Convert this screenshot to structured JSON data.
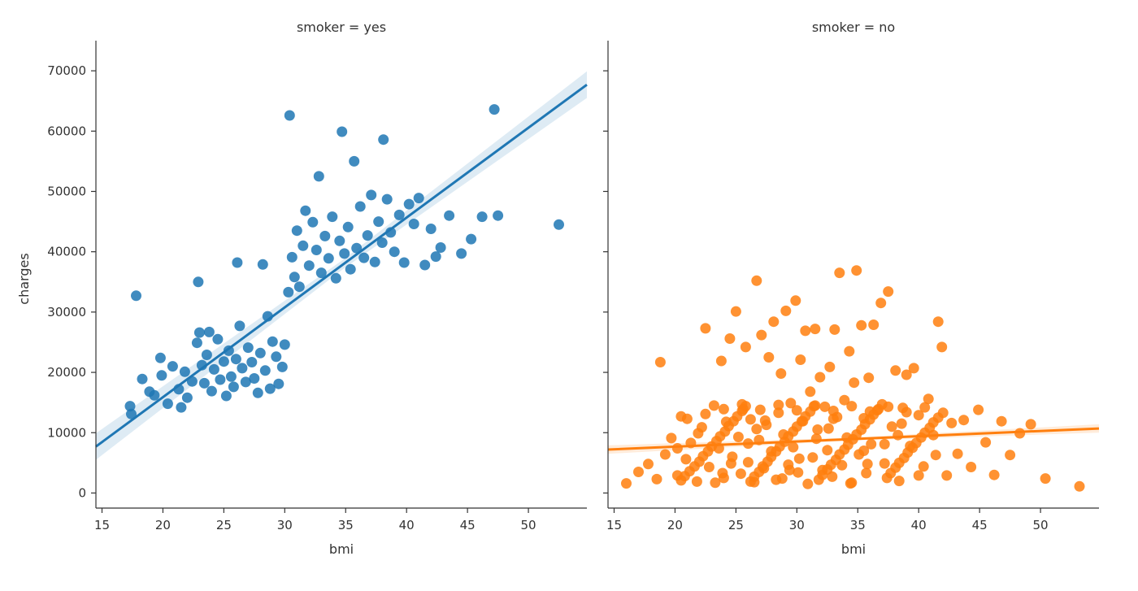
{
  "figure": {
    "ylabel": "charges",
    "yticks": [
      0,
      10000,
      20000,
      30000,
      40000,
      50000,
      60000,
      70000
    ],
    "xticks": [
      15,
      20,
      25,
      30,
      35,
      40,
      45,
      50
    ]
  },
  "chart_data": [
    {
      "type": "scatter",
      "title": "smoker = yes",
      "xlabel": "bmi",
      "ylabel": "charges",
      "xlim": [
        14.5,
        54.8
      ],
      "ylim": [
        -2500,
        75000
      ],
      "grid": false,
      "color": "#1f77b4",
      "regression": {
        "x": [
          14.5,
          54.8
        ],
        "y": [
          7700,
          67700
        ],
        "ci_halfwidth_at_ends": 2200
      },
      "points": [
        [
          17.3,
          14400
        ],
        [
          17.4,
          13100
        ],
        [
          17.8,
          32700
        ],
        [
          18.3,
          18900
        ],
        [
          18.9,
          16800
        ],
        [
          19.3,
          16200
        ],
        [
          19.8,
          22400
        ],
        [
          19.9,
          19500
        ],
        [
          20.4,
          14800
        ],
        [
          20.8,
          21000
        ],
        [
          21.3,
          17200
        ],
        [
          21.5,
          14200
        ],
        [
          21.8,
          20100
        ],
        [
          22.0,
          15800
        ],
        [
          22.4,
          18500
        ],
        [
          22.8,
          24900
        ],
        [
          22.9,
          35000
        ],
        [
          23.0,
          26600
        ],
        [
          23.2,
          21200
        ],
        [
          23.4,
          18200
        ],
        [
          23.6,
          22900
        ],
        [
          23.8,
          26700
        ],
        [
          24.0,
          16900
        ],
        [
          24.2,
          20500
        ],
        [
          24.5,
          25500
        ],
        [
          24.7,
          18800
        ],
        [
          25.0,
          21800
        ],
        [
          25.2,
          16100
        ],
        [
          25.4,
          23600
        ],
        [
          25.6,
          19300
        ],
        [
          25.8,
          17600
        ],
        [
          26.0,
          22200
        ],
        [
          26.1,
          38200
        ],
        [
          26.3,
          27700
        ],
        [
          26.5,
          20700
        ],
        [
          26.8,
          18400
        ],
        [
          27.0,
          24100
        ],
        [
          27.3,
          21700
        ],
        [
          27.5,
          19000
        ],
        [
          27.8,
          16600
        ],
        [
          28.0,
          23200
        ],
        [
          28.2,
          37900
        ],
        [
          28.4,
          20300
        ],
        [
          28.6,
          29300
        ],
        [
          28.8,
          17300
        ],
        [
          29.0,
          25100
        ],
        [
          29.3,
          22600
        ],
        [
          29.5,
          18100
        ],
        [
          29.8,
          20900
        ],
        [
          30.0,
          24600
        ],
        [
          30.3,
          33300
        ],
        [
          30.4,
          62600
        ],
        [
          30.6,
          39100
        ],
        [
          30.8,
          35800
        ],
        [
          31.0,
          43500
        ],
        [
          31.2,
          34200
        ],
        [
          31.5,
          41000
        ],
        [
          31.7,
          46800
        ],
        [
          32.0,
          37700
        ],
        [
          32.3,
          44900
        ],
        [
          32.6,
          40300
        ],
        [
          32.8,
          52500
        ],
        [
          33.0,
          36500
        ],
        [
          33.3,
          42600
        ],
        [
          33.6,
          38900
        ],
        [
          33.9,
          45800
        ],
        [
          34.2,
          35600
        ],
        [
          34.5,
          41800
        ],
        [
          34.7,
          59900
        ],
        [
          34.9,
          39700
        ],
        [
          35.2,
          44100
        ],
        [
          35.4,
          37100
        ],
        [
          35.7,
          55000
        ],
        [
          35.9,
          40600
        ],
        [
          36.2,
          47500
        ],
        [
          36.5,
          39000
        ],
        [
          36.8,
          42700
        ],
        [
          37.1,
          49400
        ],
        [
          37.4,
          38300
        ],
        [
          37.7,
          45000
        ],
        [
          38.0,
          41500
        ],
        [
          38.1,
          58600
        ],
        [
          38.4,
          48700
        ],
        [
          38.7,
          43200
        ],
        [
          39.0,
          40000
        ],
        [
          39.4,
          46100
        ],
        [
          39.8,
          38200
        ],
        [
          40.2,
          47900
        ],
        [
          40.6,
          44600
        ],
        [
          41.0,
          48900
        ],
        [
          41.5,
          37800
        ],
        [
          42.0,
          43800
        ],
        [
          42.4,
          39200
        ],
        [
          42.8,
          40700
        ],
        [
          43.5,
          46000
        ],
        [
          44.5,
          39700
        ],
        [
          45.3,
          42100
        ],
        [
          46.2,
          45800
        ],
        [
          47.2,
          63600
        ],
        [
          47.5,
          46000
        ],
        [
          52.5,
          44500
        ]
      ]
    },
    {
      "type": "scatter",
      "title": "smoker = no",
      "xlabel": "bmi",
      "ylabel": "charges",
      "xlim": [
        14.5,
        54.8
      ],
      "ylim": [
        -2500,
        75000
      ],
      "grid": false,
      "color": "#ff7f0e",
      "regression": {
        "x": [
          14.5,
          54.8
        ],
        "y": [
          7200,
          10700
        ],
        "ci_halfwidth_at_ends": 700
      },
      "points": [
        [
          16.0,
          1600
        ],
        [
          17.0,
          3500
        ],
        [
          17.8,
          4800
        ],
        [
          18.5,
          2300
        ],
        [
          18.8,
          21700
        ],
        [
          19.2,
          6400
        ],
        [
          19.7,
          9100
        ],
        [
          20.2,
          2900
        ],
        [
          20.5,
          12700
        ],
        [
          20.9,
          5600
        ],
        [
          21.3,
          8300
        ],
        [
          21.8,
          1900
        ],
        [
          22.2,
          10900
        ],
        [
          22.5,
          27300
        ],
        [
          22.8,
          4300
        ],
        [
          23.2,
          14500
        ],
        [
          23.6,
          7400
        ],
        [
          23.8,
          21900
        ],
        [
          24.0,
          2500
        ],
        [
          24.2,
          11800
        ],
        [
          24.5,
          25600
        ],
        [
          24.7,
          6000
        ],
        [
          25.0,
          30100
        ],
        [
          25.2,
          9300
        ],
        [
          25.4,
          3200
        ],
        [
          25.6,
          13900
        ],
        [
          25.8,
          24200
        ],
        [
          26.0,
          5100
        ],
        [
          26.2,
          12200
        ],
        [
          26.5,
          1800
        ],
        [
          26.7,
          35200
        ],
        [
          26.9,
          8800
        ],
        [
          27.1,
          26200
        ],
        [
          27.3,
          4100
        ],
        [
          27.5,
          11300
        ],
        [
          27.7,
          22500
        ],
        [
          27.9,
          6900
        ],
        [
          28.1,
          28400
        ],
        [
          28.3,
          2200
        ],
        [
          28.5,
          13300
        ],
        [
          28.7,
          19800
        ],
        [
          28.9,
          9700
        ],
        [
          29.1,
          30200
        ],
        [
          29.3,
          4700
        ],
        [
          29.5,
          14900
        ],
        [
          29.7,
          7600
        ],
        [
          29.9,
          31900
        ],
        [
          30.1,
          3400
        ],
        [
          30.3,
          22100
        ],
        [
          30.5,
          11900
        ],
        [
          30.7,
          26900
        ],
        [
          30.9,
          1500
        ],
        [
          31.1,
          16800
        ],
        [
          31.3,
          5900
        ],
        [
          31.5,
          27200
        ],
        [
          31.7,
          10500
        ],
        [
          31.9,
          19200
        ],
        [
          32.1,
          3800
        ],
        [
          32.3,
          14300
        ],
        [
          32.5,
          7100
        ],
        [
          32.7,
          20900
        ],
        [
          32.9,
          2700
        ],
        [
          33.1,
          27100
        ],
        [
          33.3,
          12600
        ],
        [
          33.5,
          36500
        ],
        [
          33.7,
          4600
        ],
        [
          33.9,
          15400
        ],
        [
          34.1,
          9200
        ],
        [
          34.3,
          23500
        ],
        [
          34.5,
          1700
        ],
        [
          34.7,
          18300
        ],
        [
          34.9,
          36900
        ],
        [
          35.1,
          6400
        ],
        [
          35.3,
          27800
        ],
        [
          35.5,
          12400
        ],
        [
          35.7,
          3300
        ],
        [
          35.9,
          19100
        ],
        [
          36.1,
          8100
        ],
        [
          36.3,
          27900
        ],
        [
          36.6,
          13700
        ],
        [
          36.9,
          31500
        ],
        [
          37.2,
          4900
        ],
        [
          37.5,
          33400
        ],
        [
          37.8,
          11000
        ],
        [
          38.1,
          20300
        ],
        [
          38.4,
          2000
        ],
        [
          38.7,
          14100
        ],
        [
          39.0,
          19600
        ],
        [
          39.3,
          7800
        ],
        [
          39.6,
          20700
        ],
        [
          40.0,
          12900
        ],
        [
          40.4,
          4400
        ],
        [
          40.8,
          15600
        ],
        [
          41.2,
          9600
        ],
        [
          41.6,
          28400
        ],
        [
          41.9,
          24200
        ],
        [
          42.3,
          2900
        ],
        [
          42.7,
          11600
        ],
        [
          43.2,
          6500
        ],
        [
          43.7,
          12100
        ],
        [
          44.3,
          4300
        ],
        [
          44.9,
          13800
        ],
        [
          45.5,
          8400
        ],
        [
          46.2,
          3000
        ],
        [
          46.8,
          11900
        ],
        [
          47.5,
          6300
        ],
        [
          48.3,
          9900
        ],
        [
          49.2,
          11400
        ],
        [
          50.4,
          2400
        ],
        [
          53.2,
          1100
        ],
        [
          20.5,
          2100
        ],
        [
          20.8,
          2800
        ],
        [
          21.2,
          3600
        ],
        [
          21.6,
          4400
        ],
        [
          22.0,
          5200
        ],
        [
          22.3,
          6100
        ],
        [
          22.7,
          6900
        ],
        [
          23.0,
          7700
        ],
        [
          23.4,
          8600
        ],
        [
          23.7,
          9400
        ],
        [
          24.1,
          10200
        ],
        [
          24.4,
          11100
        ],
        [
          24.8,
          11900
        ],
        [
          25.1,
          12700
        ],
        [
          25.5,
          13600
        ],
        [
          25.8,
          14400
        ],
        [
          26.2,
          1900
        ],
        [
          26.5,
          2700
        ],
        [
          26.9,
          3500
        ],
        [
          27.2,
          4400
        ],
        [
          27.6,
          5200
        ],
        [
          27.9,
          6000
        ],
        [
          28.3,
          6900
        ],
        [
          28.6,
          7700
        ],
        [
          29.0,
          8500
        ],
        [
          29.3,
          9400
        ],
        [
          29.7,
          10200
        ],
        [
          30.0,
          11000
        ],
        [
          30.4,
          11900
        ],
        [
          30.7,
          12700
        ],
        [
          31.1,
          13500
        ],
        [
          31.4,
          14400
        ],
        [
          31.8,
          2200
        ],
        [
          32.1,
          3000
        ],
        [
          32.5,
          3900
        ],
        [
          32.8,
          4700
        ],
        [
          33.2,
          5500
        ],
        [
          33.5,
          6400
        ],
        [
          33.9,
          7200
        ],
        [
          34.2,
          8000
        ],
        [
          34.6,
          8900
        ],
        [
          34.9,
          9700
        ],
        [
          35.3,
          10500
        ],
        [
          35.6,
          11400
        ],
        [
          36.0,
          12200
        ],
        [
          36.3,
          13000
        ],
        [
          36.7,
          13900
        ],
        [
          37.0,
          14700
        ],
        [
          37.4,
          2500
        ],
        [
          37.7,
          3300
        ],
        [
          38.1,
          4200
        ],
        [
          38.4,
          5000
        ],
        [
          38.8,
          5800
        ],
        [
          39.1,
          6700
        ],
        [
          39.5,
          7500
        ],
        [
          39.8,
          8300
        ],
        [
          40.2,
          9200
        ],
        [
          40.5,
          10000
        ],
        [
          40.9,
          10800
        ],
        [
          41.2,
          11700
        ],
        [
          41.6,
          12500
        ],
        [
          42.0,
          13300
        ],
        [
          21.0,
          12300
        ],
        [
          22.5,
          13100
        ],
        [
          24.0,
          13900
        ],
        [
          25.5,
          14700
        ],
        [
          27.0,
          13800
        ],
        [
          28.5,
          14600
        ],
        [
          30.0,
          13700
        ],
        [
          31.5,
          14500
        ],
        [
          33.0,
          13600
        ],
        [
          34.5,
          14400
        ],
        [
          36.0,
          13500
        ],
        [
          37.5,
          14300
        ],
        [
          39.0,
          13400
        ],
        [
          40.5,
          14200
        ],
        [
          20.2,
          7400
        ],
        [
          21.9,
          9900
        ],
        [
          23.3,
          1700
        ],
        [
          24.6,
          4900
        ],
        [
          26.0,
          8200
        ],
        [
          27.4,
          12000
        ],
        [
          28.8,
          2400
        ],
        [
          30.2,
          5700
        ],
        [
          31.6,
          9000
        ],
        [
          33.0,
          12300
        ],
        [
          34.4,
          1600
        ],
        [
          35.8,
          4800
        ],
        [
          37.2,
          8100
        ],
        [
          38.6,
          11500
        ],
        [
          40.0,
          2900
        ],
        [
          41.4,
          6300
        ],
        [
          29.4,
          3800
        ],
        [
          26.7,
          10600
        ],
        [
          32.6,
          10700
        ],
        [
          35.5,
          7000
        ],
        [
          38.3,
          9600
        ],
        [
          23.9,
          3300
        ]
      ]
    }
  ]
}
